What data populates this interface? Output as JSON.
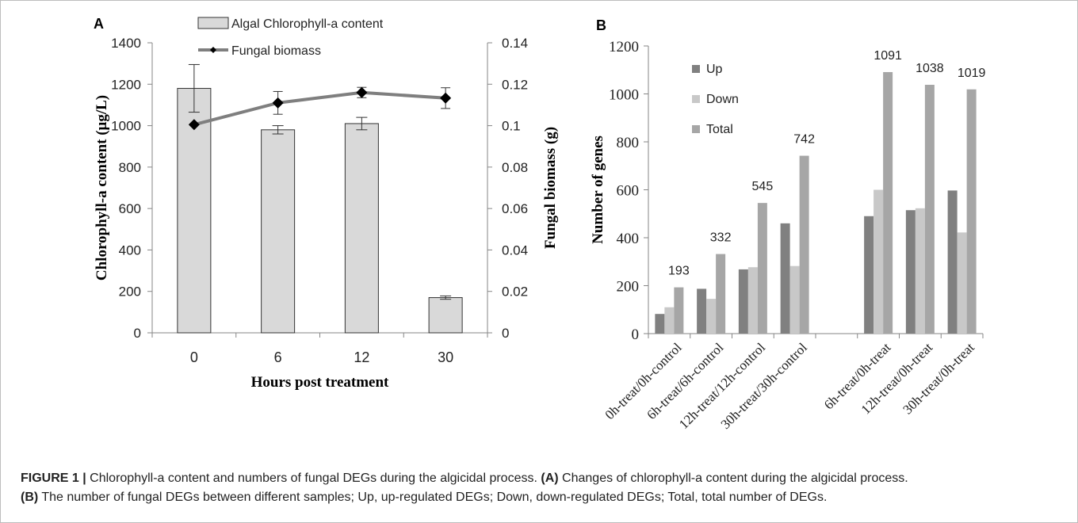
{
  "chart_data": [
    {
      "panel": "A",
      "type": "bar",
      "categories": [
        "0",
        "6",
        "12",
        "30"
      ],
      "xlabel": "Hours post treatment",
      "series": [
        {
          "name": "Algal Chlorophyll-a content",
          "type": "bar",
          "axis": "left",
          "values": [
            1180,
            980,
            1010,
            170
          ],
          "errors": [
            115,
            20,
            30,
            8
          ],
          "color": "#d9d9d9"
        },
        {
          "name": "Fungal biomass",
          "type": "line",
          "axis": "right",
          "values": [
            0.1005,
            0.111,
            0.116,
            0.1133
          ],
          "errors": [
            0,
            0.0055,
            0.0025,
            0.005
          ],
          "color": "#7f7f7f"
        }
      ],
      "y_left": {
        "label": "Chlorophyll-a content (μg/L)",
        "range": [
          0,
          1400
        ],
        "ticks": [
          "0",
          "200",
          "400",
          "600",
          "800",
          "1000",
          "1200",
          "1400"
        ]
      },
      "y_right": {
        "label": "Fungal biomass (g)",
        "range": [
          0,
          0.14
        ],
        "ticks": [
          "0",
          "0.02",
          "0.04",
          "0.06",
          "0.08",
          "0.1",
          "0.12",
          "0.14"
        ]
      },
      "legend": "top-center"
    },
    {
      "panel": "B",
      "type": "bar",
      "categories": [
        "0h-treat/0h-control",
        "6h-treat/6h-control",
        "12h-treat/12h-control",
        "30h-treat/30h-control",
        "",
        "6h-treat/0h-treat",
        "12h-treat/0h-treat",
        "30h-treat/0h-treat"
      ],
      "series": [
        {
          "name": "Up",
          "values": [
            82,
            187,
            268,
            460,
            null,
            490,
            515,
            597
          ],
          "color": "#808080"
        },
        {
          "name": "Down",
          "values": [
            110,
            145,
            277,
            282,
            null,
            600,
            523,
            422
          ],
          "color": "#c8c8c8"
        },
        {
          "name": "Total",
          "values": [
            193,
            332,
            545,
            742,
            null,
            1091,
            1038,
            1019
          ],
          "color": "#a6a6a6"
        }
      ],
      "total_labels": [
        "193",
        "332",
        "545",
        "742",
        "",
        "1091",
        "1038",
        "1019"
      ],
      "ylabel": "Number of genes",
      "ylim": [
        0,
        1200
      ],
      "yticks": [
        "0",
        "200",
        "400",
        "600",
        "800",
        "1000",
        "1200"
      ],
      "legend": "top-left"
    }
  ],
  "caption": {
    "figure_label": "FIGURE 1 |",
    "main": " Chlorophyll-a content and numbers of fungal DEGs during the algicidal process. ",
    "a_label": "(A)",
    "a_text": " Changes of chlorophyll-a content during the algicidal process.",
    "b_label": "(B)",
    "b_text": " The number of fungal DEGs between different samples; Up, up-regulated DEGs; Down, down-regulated DEGs; Total, total number of DEGs."
  }
}
